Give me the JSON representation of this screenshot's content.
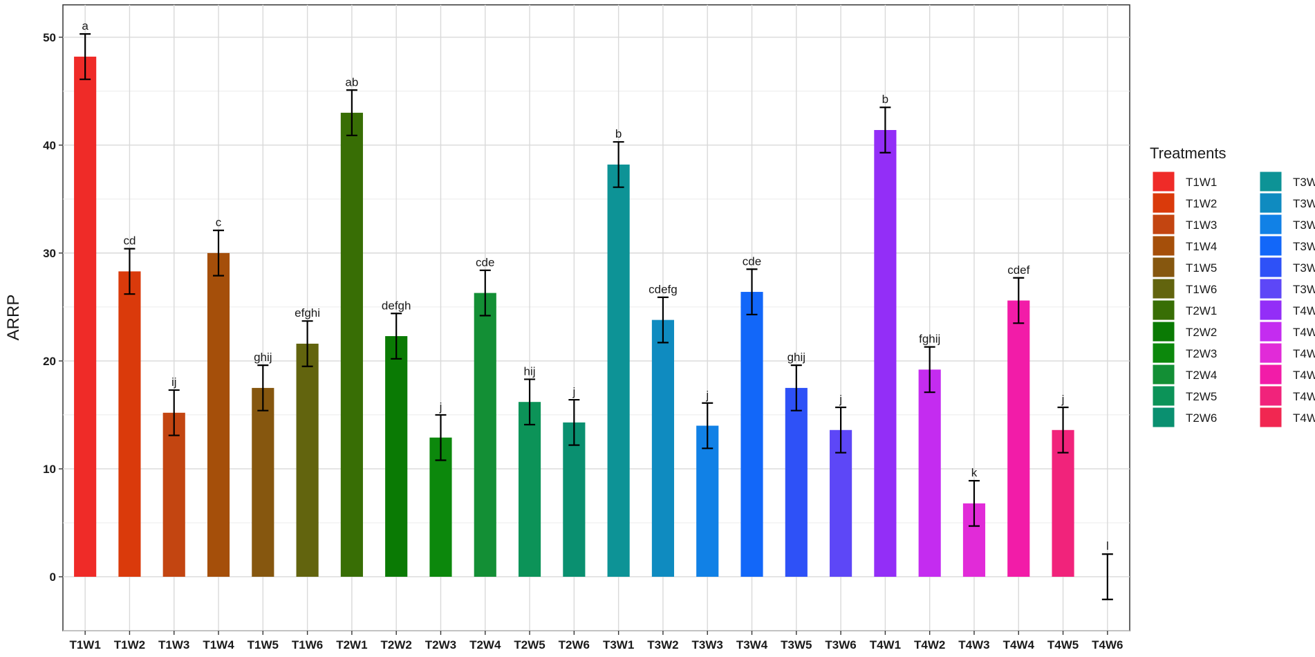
{
  "chart_data": {
    "type": "bar",
    "title": "",
    "xlabel": "",
    "ylabel": "ARRP",
    "ylim": [
      -5,
      53
    ],
    "yticks": [
      0,
      10,
      20,
      30,
      40,
      50
    ],
    "grid": true,
    "legend_title": "Treatments",
    "legend_position": "right",
    "categories": [
      "T1W1",
      "T1W2",
      "T1W3",
      "T1W4",
      "T1W5",
      "T1W6",
      "T2W1",
      "T2W2",
      "T2W3",
      "T2W4",
      "T2W5",
      "T2W6",
      "T3W1",
      "T3W2",
      "T3W3",
      "T3W4",
      "T3W5",
      "T3W6",
      "T4W1",
      "T4W2",
      "T4W3",
      "T4W4",
      "T4W5",
      "T4W6"
    ],
    "values": [
      48.2,
      28.3,
      15.2,
      30.0,
      17.5,
      21.6,
      43.0,
      22.3,
      12.9,
      26.3,
      16.2,
      14.3,
      38.2,
      23.8,
      14.0,
      26.4,
      17.5,
      13.6,
      41.4,
      19.2,
      6.8,
      25.6,
      13.6,
      0.0
    ],
    "errors": [
      2.1,
      2.1,
      2.1,
      2.1,
      2.1,
      2.1,
      2.1,
      2.1,
      2.1,
      2.1,
      2.1,
      2.1,
      2.1,
      2.1,
      2.1,
      2.1,
      2.1,
      2.1,
      2.1,
      2.1,
      2.1,
      2.1,
      2.1,
      2.1
    ],
    "significance_letters": [
      "a",
      "cd",
      "ij",
      "c",
      "ghij",
      "efghi",
      "ab",
      "defgh",
      "j",
      "cde",
      "hij",
      "j",
      "b",
      "cdefg",
      "j",
      "cde",
      "ghij",
      "j",
      "b",
      "fghij",
      "k",
      "cdef",
      "j",
      "l"
    ],
    "colors": [
      "#EF2B28",
      "#DA3A0B",
      "#C34511",
      "#A54F0A",
      "#86570F",
      "#62640E",
      "#386E05",
      "#0A7A04",
      "#0C880C",
      "#138F35",
      "#0C9358",
      "#0A9070",
      "#0D9396",
      "#0F8BC0",
      "#1181E6",
      "#1267F9",
      "#2E51F7",
      "#5D47F7",
      "#932EF7",
      "#C42CF0",
      "#E12BD8",
      "#F21CA8",
      "#F1237B",
      "#F12751"
    ]
  }
}
